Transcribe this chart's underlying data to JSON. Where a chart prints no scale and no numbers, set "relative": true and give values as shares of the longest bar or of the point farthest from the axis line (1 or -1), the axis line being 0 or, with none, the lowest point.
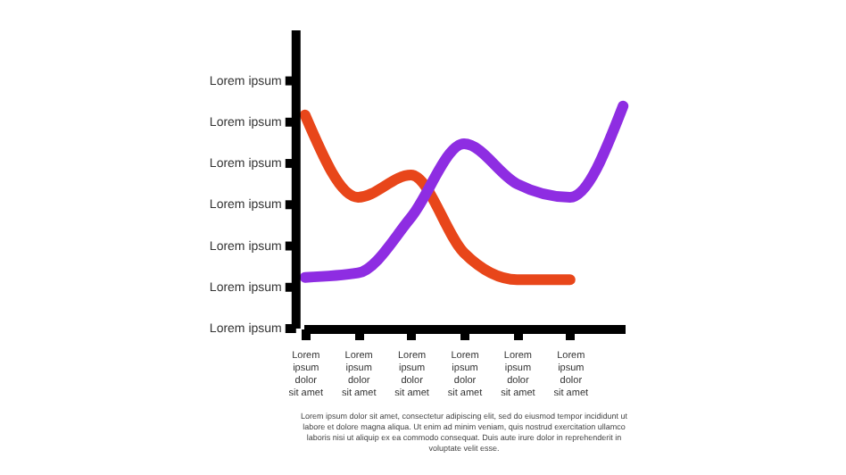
{
  "chart_data": {
    "type": "line",
    "relative": true,
    "categories": [
      "Lorem\nipsum\ndolor\nsit amet",
      "Lorem\nipsum\ndolor\nsit amet",
      "Lorem\nipsum\ndolor\nsit amet",
      "Lorem\nipsum\ndolor\nsit amet",
      "Lorem\nipsum\ndolor\nsit amet",
      "Lorem\nipsum\ndolor\nsit amet",
      null
    ],
    "grid": false,
    "series": [
      {
        "color": "#e8461a",
        "values": [
          0.96,
          0.59,
          0.69,
          0.34,
          0.22,
          0.22,
          null
        ]
      },
      {
        "color": "#8e2de2",
        "values": [
          0.23,
          0.25,
          0.5,
          0.83,
          0.65,
          0.59,
          1
        ]
      }
    ],
    "annotations": [
      "Lorem ipsum",
      "Lorem ipsum",
      "Lorem ipsum",
      "Lorem ipsum",
      "Lorem ipsum",
      "Lorem ipsum",
      "Lorem ipsum",
      "Lorem ipsum dolor sit amet, consectetur adipiscing elit, sed do eiusmod tempor incididunt ut labore et dolore magna aliqua. Ut enim ad minim veniam, quis nostrud exercitation ullamco laboris nisi ut aliquip ex ea commodo consequat. Duis aute irure dolor in reprehenderit in voluptate velit esse."
    ]
  }
}
